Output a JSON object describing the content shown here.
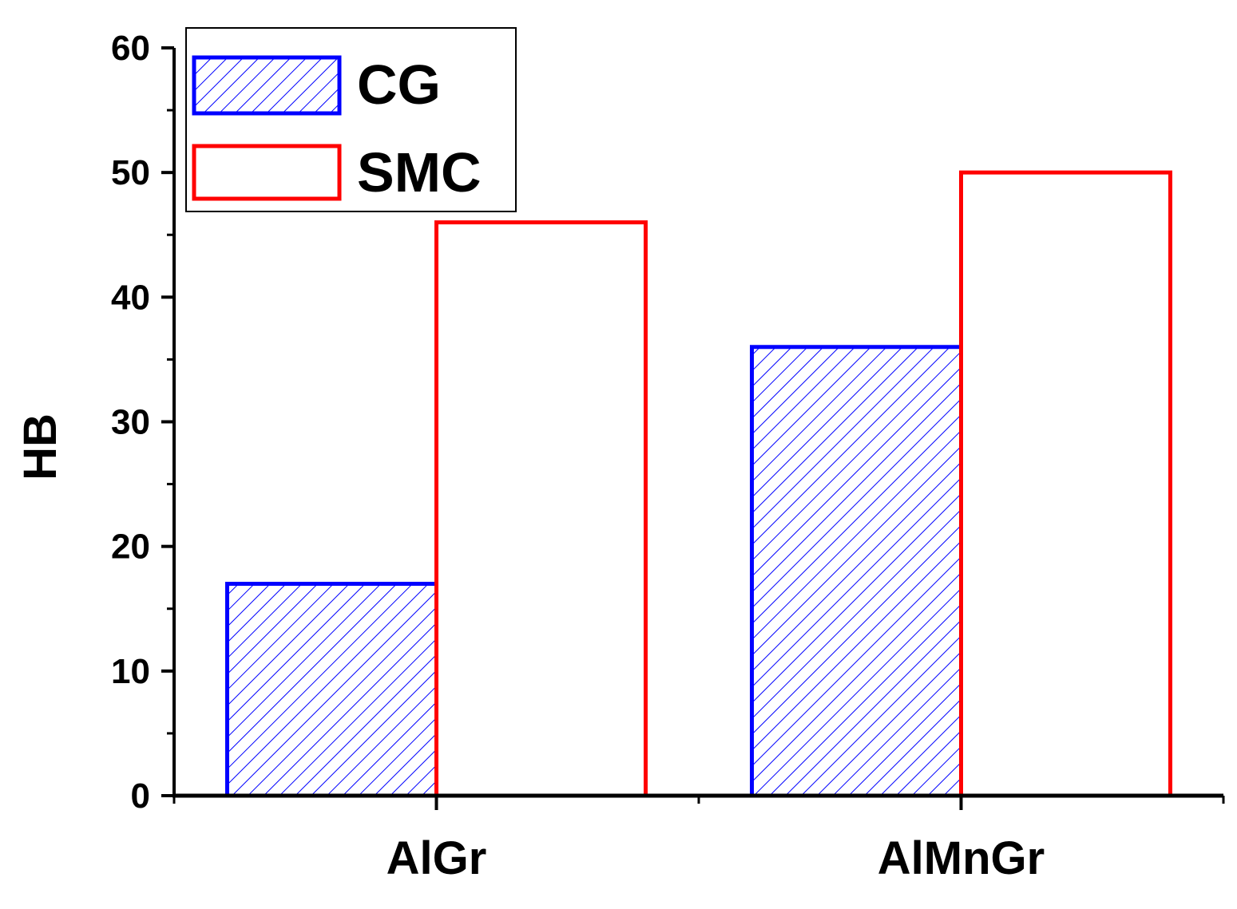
{
  "chart_data": {
    "type": "bar",
    "categories": [
      "AlGr",
      "AlMnGr"
    ],
    "series": [
      {
        "name": "CG",
        "values": [
          17,
          36
        ],
        "color": "#0000ff",
        "fill": "hatched"
      },
      {
        "name": "SMC",
        "values": [
          46,
          50
        ],
        "color": "#ff0000",
        "fill": "none"
      }
    ],
    "xlabel": "",
    "ylabel": "HB",
    "ylim": [
      0,
      60
    ],
    "yticks": [
      "0",
      "10",
      "20",
      "30",
      "40",
      "50",
      "60"
    ],
    "legend": {
      "position": "top-left",
      "entries": [
        "CG",
        "SMC"
      ]
    },
    "grid": false
  }
}
